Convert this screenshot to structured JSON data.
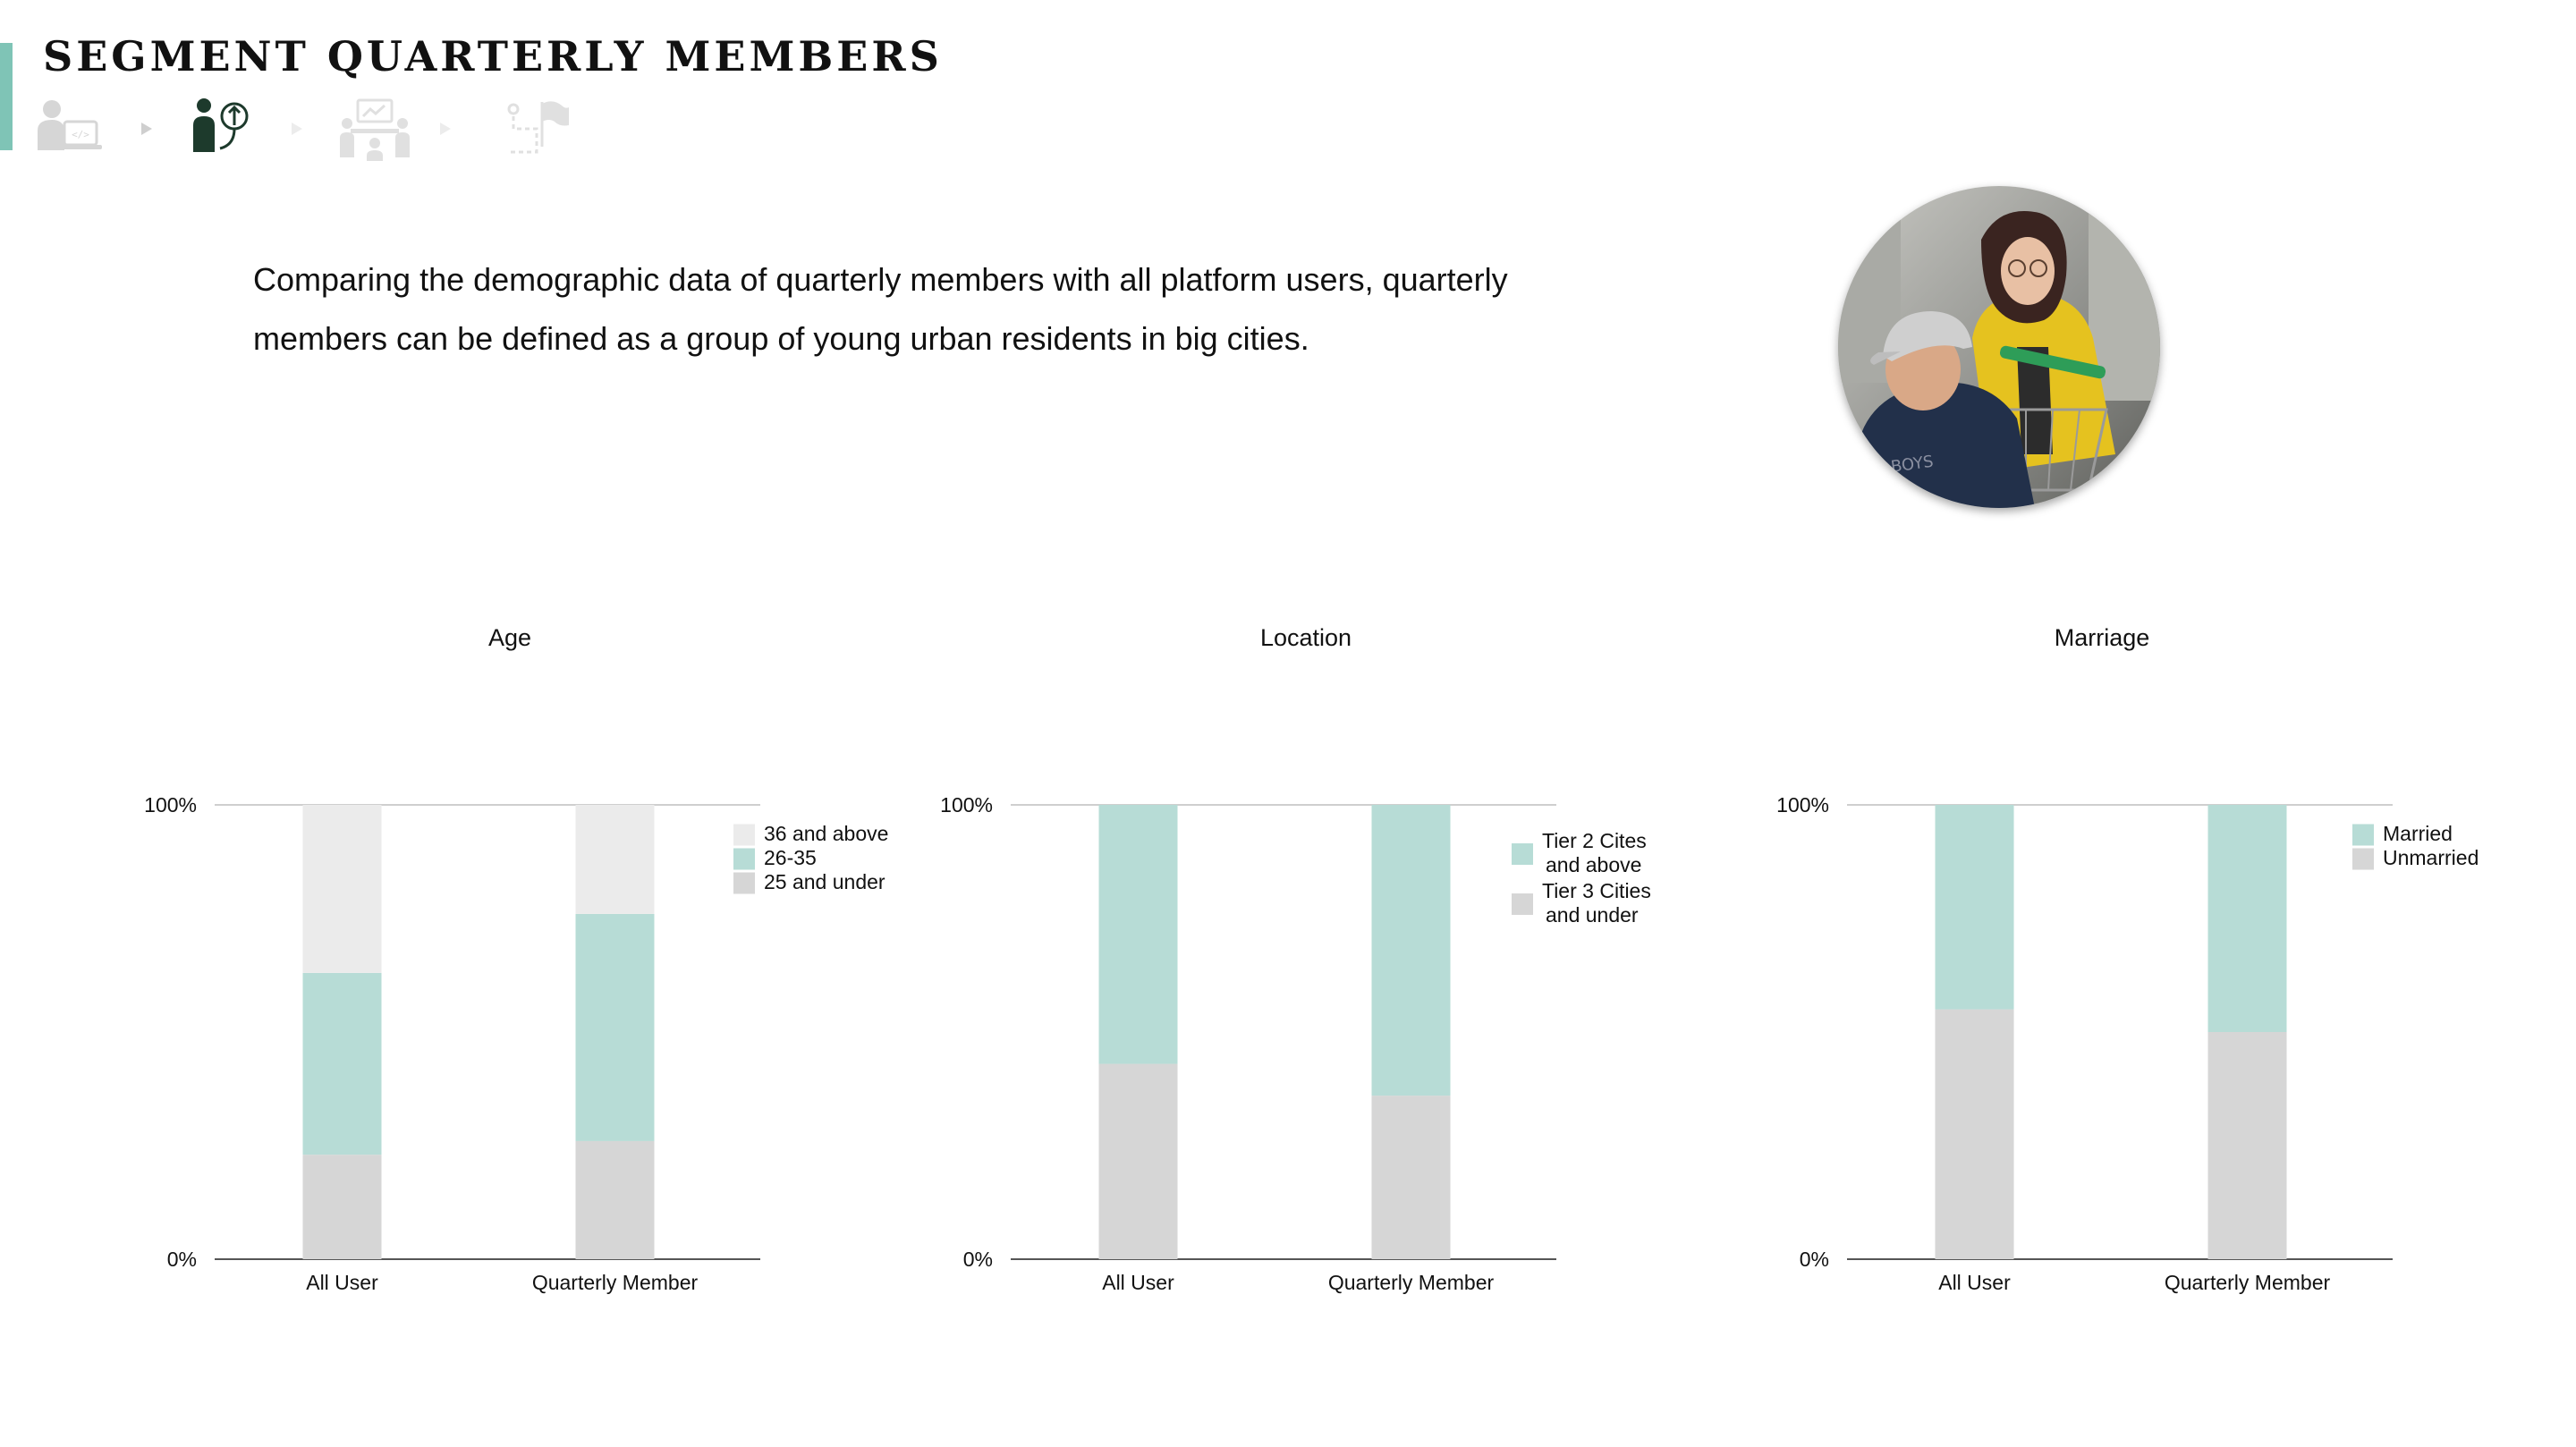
{
  "header": {
    "title": "SEGMENT QUARTERLY MEMBERS",
    "accent_color": "#7fc4b6"
  },
  "progress_steps": [
    {
      "icon": "developer-at-laptop-icon",
      "state": "inactive"
    },
    {
      "icon": "person-with-idea-icon",
      "state": "active"
    },
    {
      "icon": "team-meeting-icon",
      "state": "inactive"
    },
    {
      "icon": "route-to-flag-icon",
      "state": "inactive"
    }
  ],
  "description": "Comparing the demographic data of quarterly members with all platform users, quarterly members can be defined as a group of young urban residents in big cities.",
  "photo": {
    "icon": "young-couple-photo"
  },
  "chart_data": [
    {
      "type": "bar",
      "stacked": true,
      "title": "Age",
      "categories": [
        "All User",
        "Quarterly Member"
      ],
      "ytick_labels": [
        "0%",
        "100%"
      ],
      "ylim": [
        0,
        100
      ],
      "series": [
        {
          "name": "25 and under",
          "values": [
            23,
            26
          ],
          "color": "#d6d6d6"
        },
        {
          "name": "26-35",
          "values": [
            40,
            50
          ],
          "color": "#b7dcd6"
        },
        {
          "name": "36 and above",
          "values": [
            37,
            24
          ],
          "color": "#ebebeb"
        }
      ],
      "legend_position": "top-right",
      "legend_order": [
        "36 and above",
        "26-35",
        "25 and under"
      ]
    },
    {
      "type": "bar",
      "stacked": true,
      "title": "Location",
      "categories": [
        "All User",
        "Quarterly Member"
      ],
      "ytick_labels": [
        "0%",
        "100%"
      ],
      "ylim": [
        0,
        100
      ],
      "series": [
        {
          "name": "Tier 3 Cities and under",
          "values": [
            43,
            36
          ],
          "color": "#d6d6d6"
        },
        {
          "name": "Tier 2 Cites and above",
          "values": [
            57,
            64
          ],
          "color": "#b7dcd6"
        }
      ],
      "legend_position": "top-right",
      "legend_order": [
        "Tier 2 Cites and above",
        "Tier 3 Cities and under"
      ],
      "legend_lines": [
        [
          "Tier 2 Cites",
          "and above"
        ],
        [
          "Tier 3 Cities",
          "and under"
        ]
      ]
    },
    {
      "type": "bar",
      "stacked": true,
      "title": "Marriage",
      "categories": [
        "All User",
        "Quarterly Member"
      ],
      "ytick_labels": [
        "0%",
        "100%"
      ],
      "ylim": [
        0,
        100
      ],
      "series": [
        {
          "name": "Unmarried",
          "values": [
            55,
            50
          ],
          "color": "#d6d6d6"
        },
        {
          "name": "Married",
          "values": [
            45,
            50
          ],
          "color": "#b7dcd6"
        }
      ],
      "legend_position": "top-right",
      "legend_order": [
        "Married",
        "Unmarried"
      ]
    }
  ]
}
